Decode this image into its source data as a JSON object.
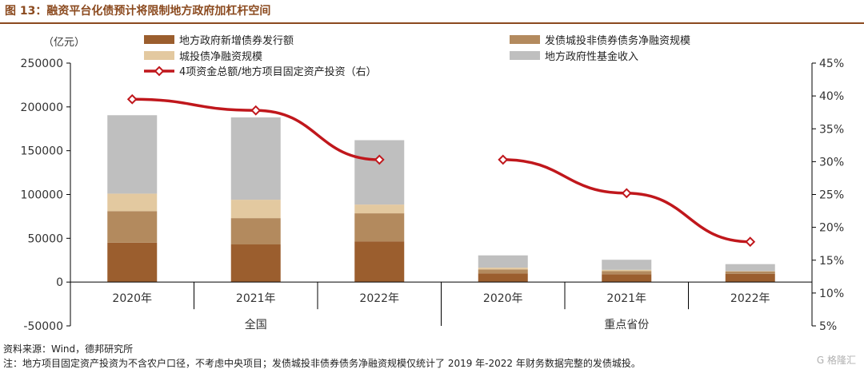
{
  "title": "图 13：融资平台化债预计将限制地方政府加杠杆空间",
  "colors": {
    "title": "#8b4a1f",
    "s1": "#9b5e2e",
    "s2": "#b38a5e",
    "s3": "#e3c9a0",
    "s4": "#bfbfbf",
    "line": "#c0171c"
  },
  "chart_data": {
    "type": "bar",
    "stacked": true,
    "left_axis_unit": "（亿元）",
    "ylim": [
      -50000,
      250000
    ],
    "yticks": [
      -50000,
      0,
      50000,
      100000,
      150000,
      200000,
      250000
    ],
    "y2lim": [
      0.05,
      0.45
    ],
    "y2ticks": [
      "5%",
      "10%",
      "15%",
      "20%",
      "25%",
      "30%",
      "35%",
      "40%",
      "45%"
    ],
    "categories": [
      "2020年",
      "2021年",
      "2022年",
      "2020年",
      "2021年",
      "2022年"
    ],
    "groups": [
      {
        "label": "全国",
        "span": [
          0,
          2
        ]
      },
      {
        "label": "重点省份",
        "span": [
          3,
          5
        ]
      }
    ],
    "series": [
      {
        "name": "地方政府新增债券发行额",
        "values": [
          45000,
          43000,
          46500,
          10000,
          9000,
          9500
        ]
      },
      {
        "name": "发债城投非债券债务净融资规模",
        "values": [
          36000,
          30000,
          32000,
          4500,
          3500,
          2500
        ]
      },
      {
        "name": "城投债净融资规模",
        "values": [
          20000,
          21000,
          10000,
          2000,
          1500,
          500
        ]
      },
      {
        "name": "地方政府性基金收入",
        "values": [
          89500,
          94000,
          73500,
          14000,
          11500,
          8000
        ]
      }
    ],
    "line_series": {
      "name": "4项资金总额/地方项目固定资产投资（右）",
      "values": [
        0.395,
        0.378,
        0.303,
        0.303,
        0.252,
        0.178
      ]
    }
  },
  "footer": {
    "source": "资料来源：Wind，德邦研究所",
    "note": "注：地方项目固定资产投资为不含农户口径，不考虑中央项目；发债城投非债券债务净融资规模仅统计了 2019 年-2022 年财务数据完整的发债城投。",
    "watermark": "G 格隆汇"
  }
}
